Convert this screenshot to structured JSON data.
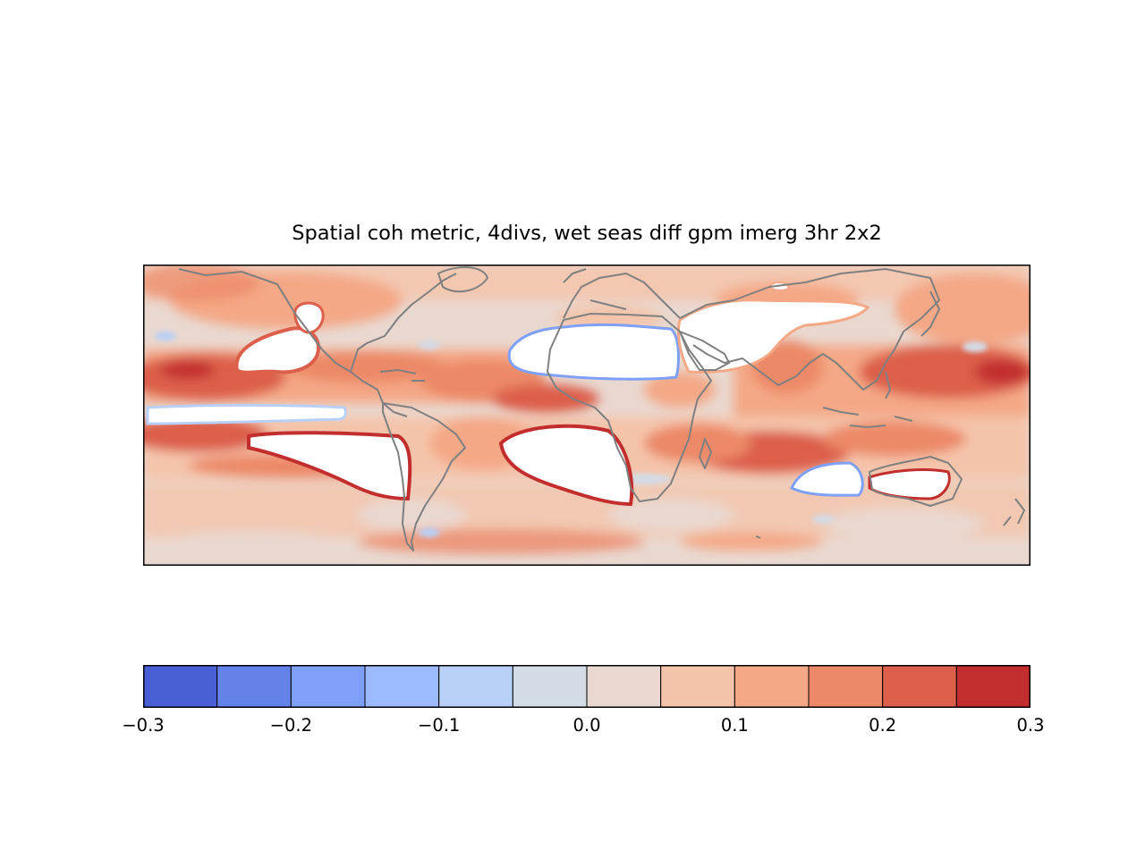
{
  "title": "Spatial coh metric, 4divs, wet seas diff gpm imerg 3hr 2x2",
  "colorbar": {
    "levels": [
      -0.3,
      -0.25,
      -0.2,
      -0.15,
      -0.1,
      -0.05,
      0.0,
      0.05,
      0.1,
      0.15,
      0.2,
      0.25,
      0.3
    ],
    "colors": [
      "#4a5fd3",
      "#6383eb",
      "#7fa0f8",
      "#9cbaff",
      "#b8cff8",
      "#d3dbe6",
      "#e9d8d0",
      "#f4c4aa",
      "#f4a886",
      "#ec8968",
      "#dc5f4b",
      "#c22e2d"
    ],
    "tick_labels": [
      "−0.3",
      "−0.2",
      "−0.1",
      "0.0",
      "0.1",
      "0.2",
      "0.3"
    ],
    "tick_values": [
      -0.3,
      -0.2,
      -0.1,
      0.0,
      0.1,
      0.2,
      0.3
    ]
  },
  "map": {
    "background_color": "#e9d8d0",
    "coastline_color": "#808080",
    "missing_color": "#ffffff"
  }
}
